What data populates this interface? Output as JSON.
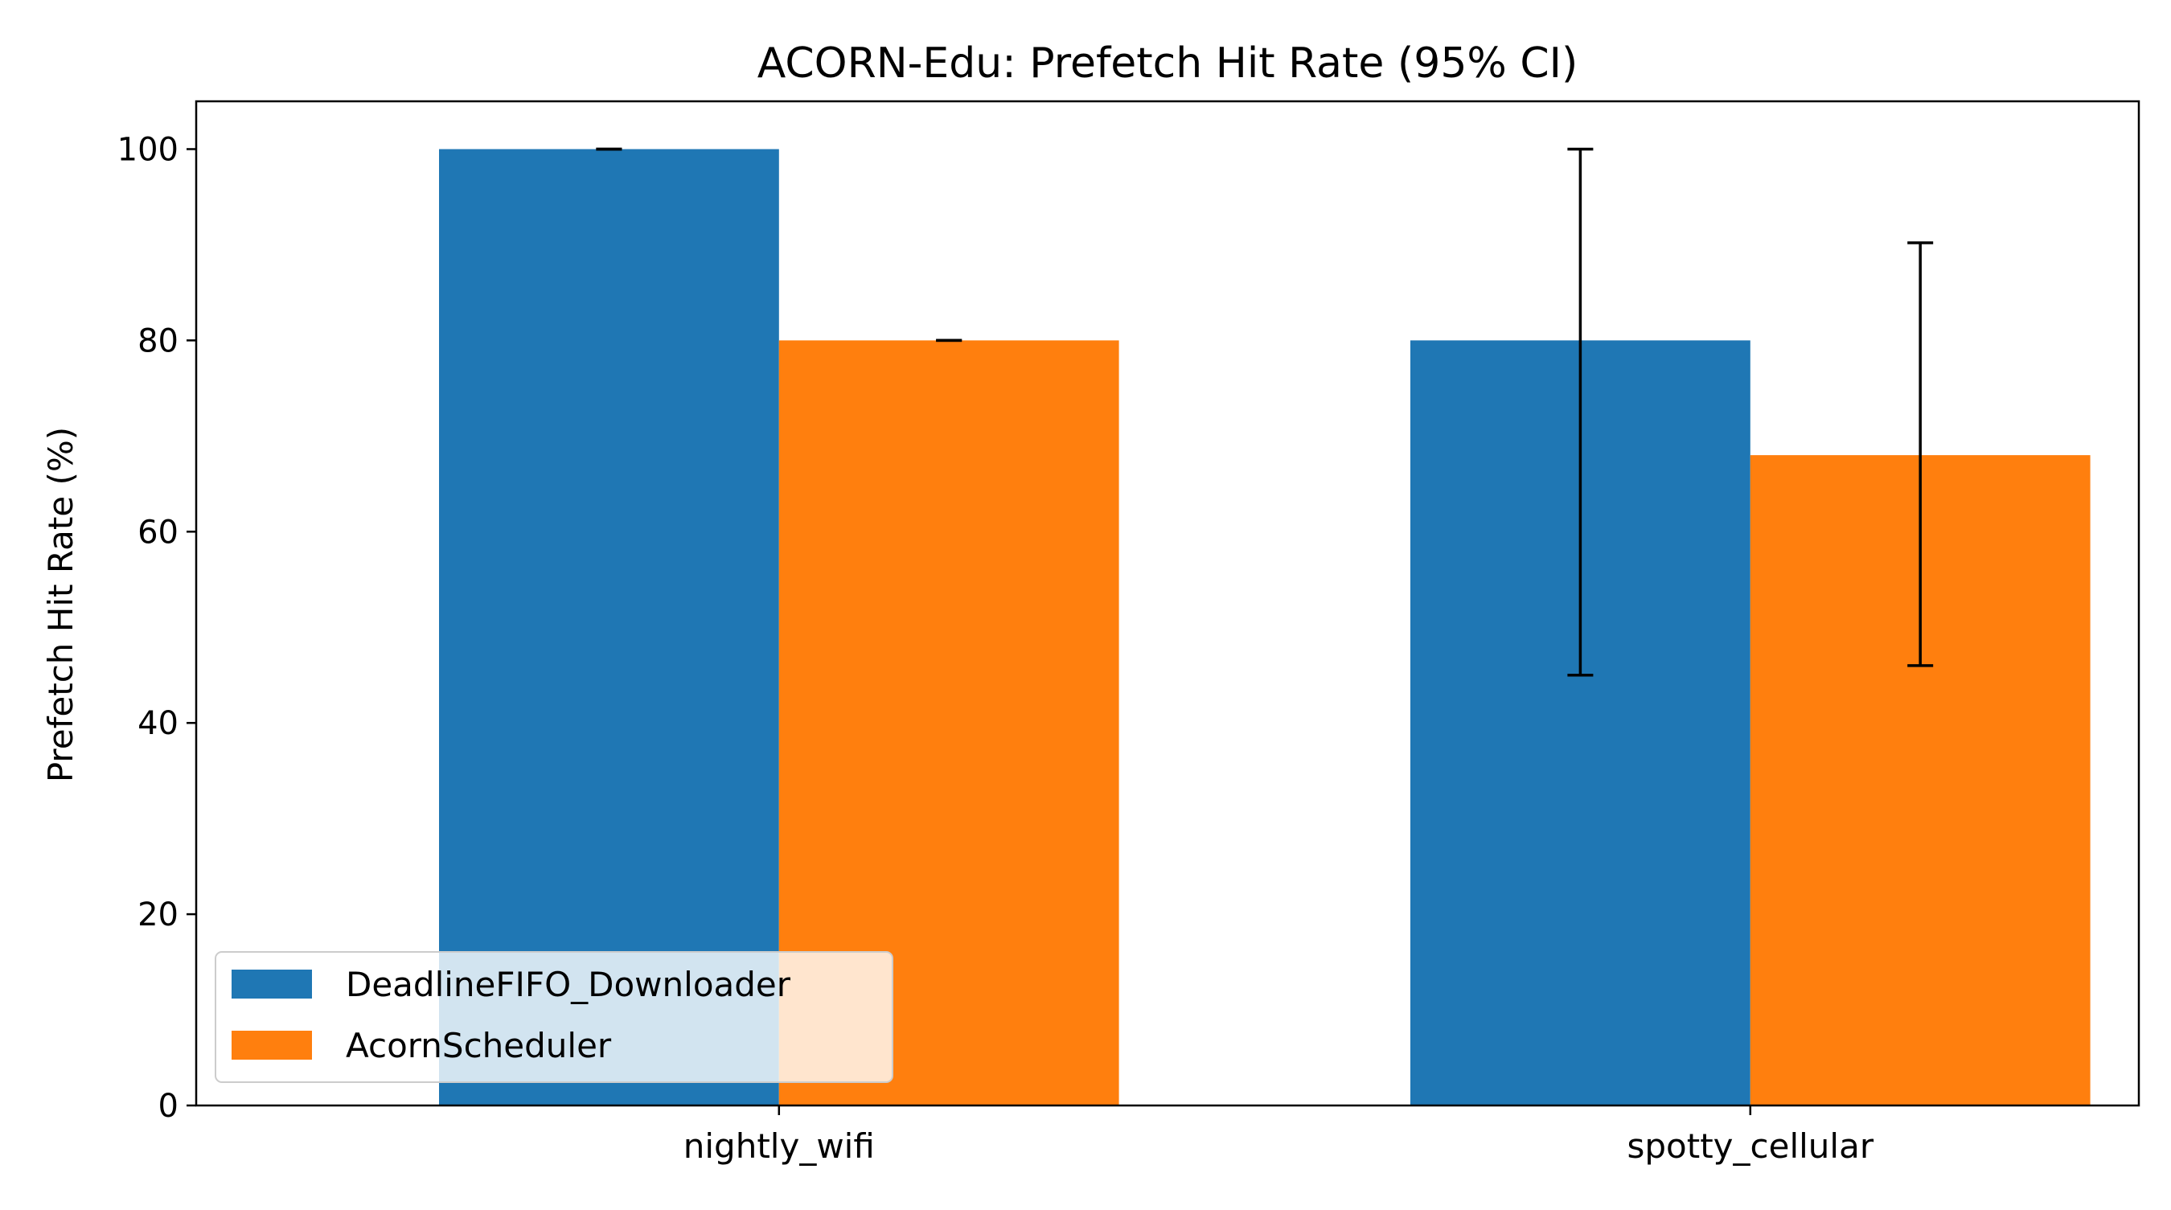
{
  "chart_data": {
    "type": "bar",
    "title": "ACORN-Edu: Prefetch Hit Rate (95% CI)",
    "xlabel": "",
    "ylabel": "Prefetch Hit Rate (%)",
    "categories": [
      "nightly_wifi",
      "spotty_cellular"
    ],
    "ylim": [
      0,
      105
    ],
    "yticks": [
      0,
      20,
      40,
      60,
      80,
      100
    ],
    "grid": false,
    "legend_position": "lower-left",
    "series": [
      {
        "name": "DeadlineFIFO_Downloader",
        "color": "#1f77b4",
        "values": [
          100,
          80
        ],
        "ci_low": [
          100,
          45
        ],
        "ci_high": [
          100,
          100
        ]
      },
      {
        "name": "AcornScheduler",
        "color": "#ff7f0e",
        "values": [
          80,
          68
        ],
        "ci_low": [
          80,
          46
        ],
        "ci_high": [
          80,
          90.2
        ]
      }
    ]
  }
}
